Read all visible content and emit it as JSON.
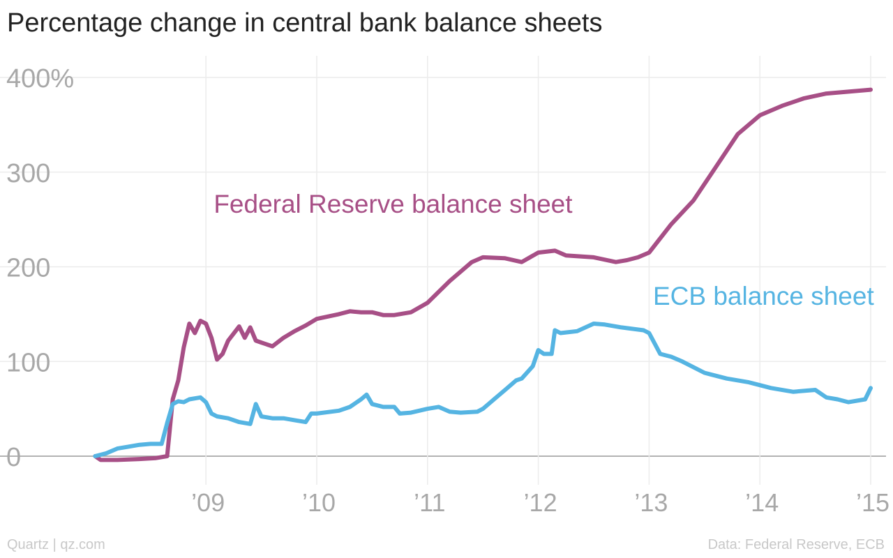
{
  "header": {
    "title": "Percentage change in central bank balance sheets"
  },
  "footer": {
    "credit": "Quartz | qz.com",
    "source": "Data: Federal Reserve, ECB"
  },
  "colors": {
    "fed": "#a74f86",
    "ecb": "#55b4e2",
    "grid": "#ececec",
    "zero": "#999999",
    "ticks": "#a8a8a8"
  },
  "chart_data": {
    "type": "line",
    "title": "Percentage change in central bank balance sheets",
    "xlim": [
      2008.0,
      2015.05
    ],
    "ylim": [
      0,
      400
    ],
    "grid": true,
    "x_ticks": [
      {
        "value": 2009,
        "label": "’09"
      },
      {
        "value": 2010,
        "label": "’10"
      },
      {
        "value": 2011,
        "label": "’11"
      },
      {
        "value": 2012,
        "label": "’12"
      },
      {
        "value": 2013,
        "label": "’13"
      },
      {
        "value": 2014,
        "label": "’14"
      },
      {
        "value": 2015,
        "label": "’15"
      }
    ],
    "y_ticks": [
      {
        "value": 0,
        "label": "0"
      },
      {
        "value": 100,
        "label": "100"
      },
      {
        "value": 200,
        "label": "200"
      },
      {
        "value": 300,
        "label": "300"
      },
      {
        "value": 400,
        "label": "400%"
      }
    ],
    "series": [
      {
        "name": "Federal Reserve balance sheet",
        "color": "#a74f86",
        "x": [
          2008.0,
          2008.05,
          2008.2,
          2008.4,
          2008.55,
          2008.65,
          2008.7,
          2008.75,
          2008.8,
          2008.85,
          2008.9,
          2008.95,
          2009.0,
          2009.05,
          2009.1,
          2009.15,
          2009.2,
          2009.3,
          2009.35,
          2009.4,
          2009.45,
          2009.5,
          2009.6,
          2009.7,
          2009.8,
          2009.9,
          2010.0,
          2010.2,
          2010.3,
          2010.4,
          2010.5,
          2010.6,
          2010.7,
          2010.85,
          2011.0,
          2011.2,
          2011.4,
          2011.5,
          2011.7,
          2011.85,
          2012.0,
          2012.15,
          2012.25,
          2012.5,
          2012.7,
          2012.8,
          2012.9,
          2013.0,
          2013.2,
          2013.4,
          2013.6,
          2013.8,
          2014.0,
          2014.2,
          2014.4,
          2014.6,
          2014.8,
          2015.0
        ],
        "values": [
          0,
          -4,
          -4,
          -3,
          -2,
          0,
          60,
          80,
          115,
          140,
          130,
          143,
          140,
          125,
          102,
          108,
          122,
          137,
          125,
          136,
          122,
          120,
          116,
          125,
          132,
          138,
          145,
          150,
          153,
          152,
          152,
          149,
          149,
          152,
          162,
          185,
          205,
          210,
          209,
          205,
          215,
          217,
          212,
          210,
          205,
          207,
          210,
          215,
          245,
          270,
          305,
          340,
          360,
          370,
          378,
          383,
          385,
          387
        ]
      },
      {
        "name": "ECB balance sheet",
        "color": "#55b4e2",
        "x": [
          2008.0,
          2008.1,
          2008.2,
          2008.3,
          2008.4,
          2008.5,
          2008.6,
          2008.65,
          2008.7,
          2008.75,
          2008.8,
          2008.85,
          2008.95,
          2009.0,
          2009.05,
          2009.1,
          2009.2,
          2009.3,
          2009.4,
          2009.45,
          2009.5,
          2009.6,
          2009.7,
          2009.8,
          2009.9,
          2009.95,
          2010.0,
          2010.2,
          2010.3,
          2010.4,
          2010.45,
          2010.5,
          2010.6,
          2010.7,
          2010.75,
          2010.85,
          2011.0,
          2011.1,
          2011.2,
          2011.3,
          2011.45,
          2011.5,
          2011.6,
          2011.7,
          2011.8,
          2011.85,
          2011.95,
          2012.0,
          2012.05,
          2012.12,
          2012.15,
          2012.2,
          2012.35,
          2012.5,
          2012.6,
          2012.75,
          2012.95,
          2013.0,
          2013.1,
          2013.2,
          2013.3,
          2013.5,
          2013.7,
          2013.9,
          2014.0,
          2014.1,
          2014.3,
          2014.5,
          2014.6,
          2014.7,
          2014.8,
          2014.95,
          2015.0
        ],
        "values": [
          0,
          3,
          8,
          10,
          12,
          13,
          13,
          35,
          55,
          58,
          57,
          60,
          62,
          57,
          45,
          42,
          40,
          36,
          34,
          55,
          42,
          40,
          40,
          38,
          36,
          45,
          45,
          48,
          52,
          60,
          65,
          55,
          52,
          52,
          45,
          46,
          50,
          52,
          47,
          46,
          47,
          50,
          60,
          70,
          80,
          82,
          95,
          112,
          108,
          108,
          133,
          130,
          132,
          140,
          139,
          136,
          133,
          130,
          108,
          105,
          100,
          88,
          82,
          78,
          75,
          72,
          68,
          70,
          62,
          60,
          57,
          60,
          72
        ]
      }
    ],
    "annotations": [
      {
        "text": "Federal Reserve balance sheet",
        "x": 2009.07,
        "y": 257,
        "anchor": "start",
        "series": 0
      },
      {
        "text": "ECB balance sheet",
        "x": 2015.03,
        "y": 160,
        "anchor": "end",
        "series": 1
      }
    ]
  }
}
